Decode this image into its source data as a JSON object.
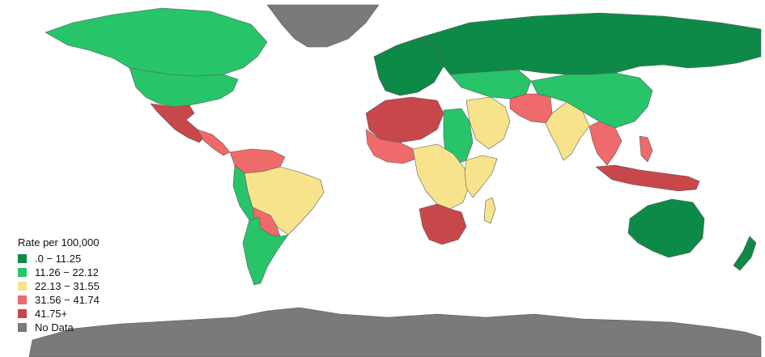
{
  "map": {
    "legend": {
      "title": "Rate per 100,000",
      "items": [
        {
          "label": ".0 − 11.25",
          "color": "#0e8a48"
        },
        {
          "label": "11.26 − 22.12",
          "color": "#27c46a"
        },
        {
          "label": "22.13 − 31.55",
          "color": "#f6e38c"
        },
        {
          "label": "31.56 − 41.74",
          "color": "#ef6a6a"
        },
        {
          "label": "41.75+",
          "color": "#c8474a"
        },
        {
          "label": "No Data",
          "color": "#7a7a7a"
        }
      ]
    },
    "ocean_color": "#ffffff"
  }
}
